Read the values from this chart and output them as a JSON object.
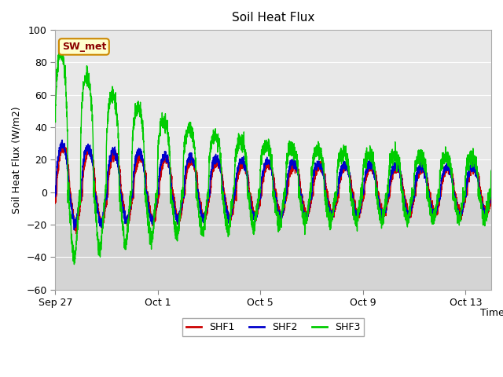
{
  "title": "Soil Heat Flux",
  "ylabel": "Soil Heat Flux (W/m2)",
  "xlabel": "Time",
  "ylim": [
    -60,
    100
  ],
  "yticks": [
    -60,
    -40,
    -20,
    0,
    20,
    40,
    60,
    80,
    100
  ],
  "xtick_labels": [
    "Sep 27",
    "Oct 1",
    "Oct 5",
    "Oct 9",
    "Oct 13"
  ],
  "xtick_positions": [
    0,
    4,
    8,
    12,
    16
  ],
  "xlim": [
    0,
    17
  ],
  "shf1_color": "#cc0000",
  "shf2_color": "#0000cc",
  "shf3_color": "#00cc00",
  "bg_above0_color": "#e8e8e8",
  "bg_below0_color": "#d4d4d4",
  "grid_color": "#ffffff",
  "legend_labels": [
    "SHF1",
    "SHF2",
    "SHF3"
  ],
  "sw_met_label": "SW_met",
  "sw_met_text_color": "#8b0000",
  "sw_met_bg": "#ffffcc",
  "sw_met_border": "#cc8800"
}
